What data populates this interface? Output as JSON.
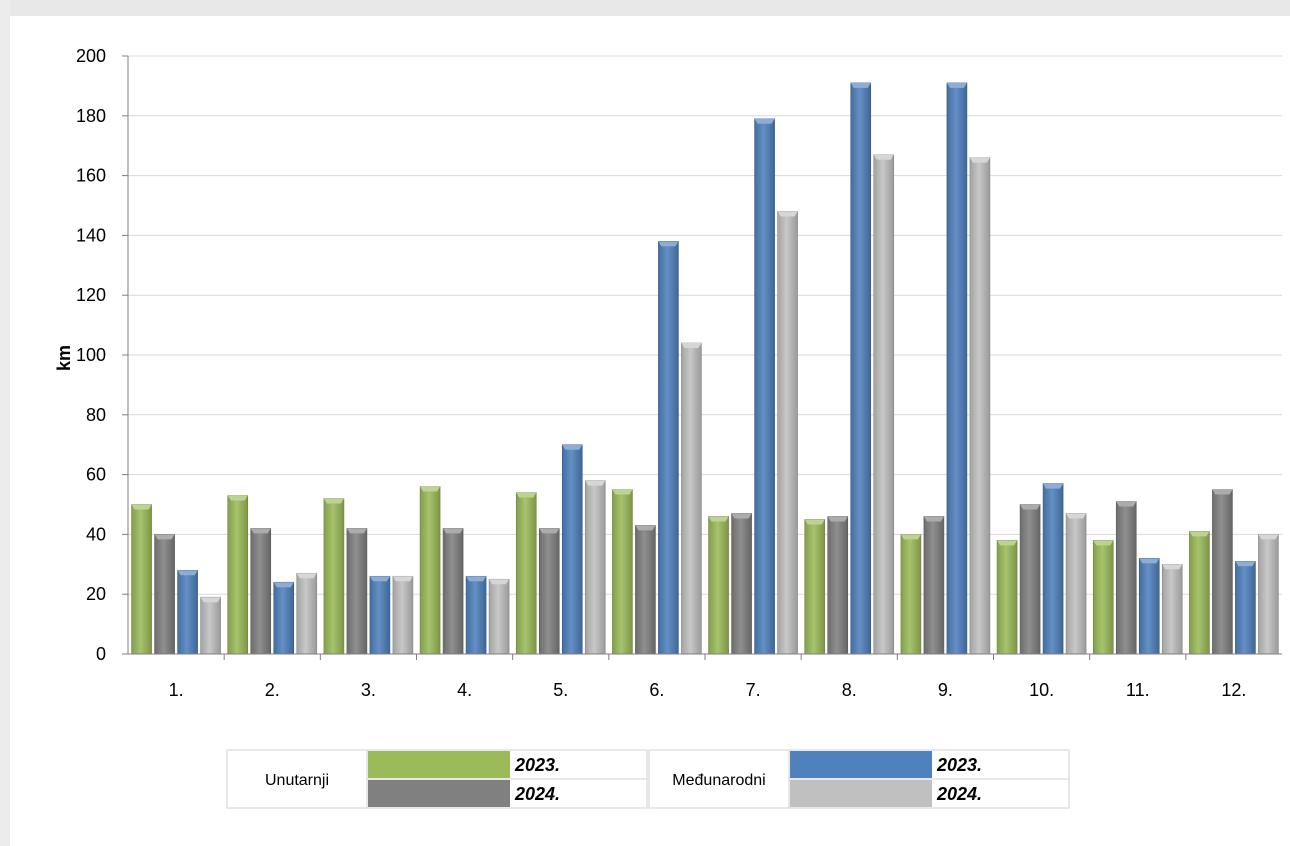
{
  "chart_data": {
    "type": "bar",
    "title": "",
    "xlabel": "",
    "ylabel": "km",
    "ylim": [
      0,
      200
    ],
    "yticks": [
      0,
      20,
      40,
      60,
      80,
      100,
      120,
      140,
      160,
      180,
      200
    ],
    "grid": true,
    "categories": [
      "1.",
      "2.",
      "3.",
      "4.",
      "5.",
      "6.",
      "7.",
      "8.",
      "9.",
      "10.",
      "11.",
      "12."
    ],
    "series": [
      {
        "group": "Unutarnji",
        "name": "2023.",
        "color": "#9bbb59",
        "values": [
          50,
          53,
          52,
          56,
          54,
          55,
          46,
          45,
          40,
          38,
          38,
          41
        ]
      },
      {
        "group": "Unutarnji",
        "name": "2024.",
        "color": "#808080",
        "values": [
          40,
          42,
          42,
          42,
          42,
          43,
          47,
          46,
          46,
          50,
          51,
          55
        ]
      },
      {
        "group": "Međunarodni",
        "name": "2023.",
        "color": "#4f81bd",
        "values": [
          28,
          24,
          26,
          26,
          70,
          138,
          179,
          191,
          191,
          57,
          32,
          31
        ]
      },
      {
        "group": "Međunarodni",
        "name": "2024.",
        "color": "#c0c0c0",
        "values": [
          19,
          27,
          26,
          25,
          58,
          104,
          148,
          167,
          166,
          47,
          30,
          40
        ]
      }
    ],
    "legend": {
      "placement": "bottom",
      "groups": [
        {
          "label": "Unutarnji",
          "years": [
            "2023.",
            "2024."
          ]
        },
        {
          "label": "Međunarodni",
          "years": [
            "2023.",
            "2024."
          ]
        }
      ]
    }
  }
}
